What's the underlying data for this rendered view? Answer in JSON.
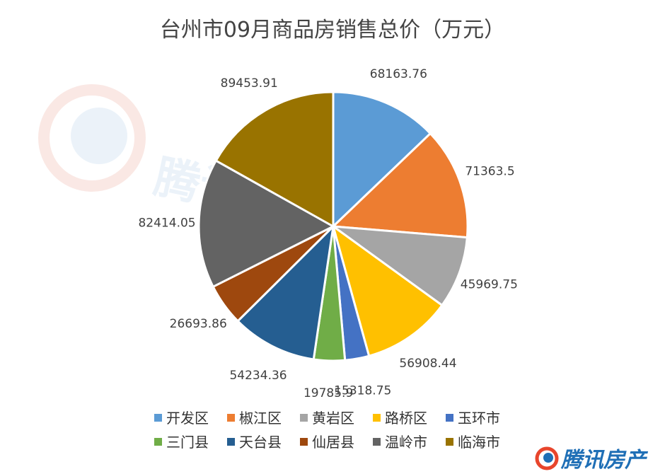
{
  "chart_data": {
    "type": "pie",
    "title": "台州市09月商品房销售总价（万元）",
    "categories": [
      "开发区",
      "椒江区",
      "黄岩区",
      "路桥区",
      "玉环市",
      "三门县",
      "天台县",
      "仙居县",
      "温岭市",
      "临海市"
    ],
    "values": [
      68163.76,
      71363.5,
      45969.75,
      56908.44,
      15318.75,
      19785.9,
      54234.36,
      26693.86,
      82414.05,
      89453.91
    ],
    "value_labels": [
      "68163.76",
      "71363.5",
      "45969.75",
      "56908.44",
      "15318.75",
      "19785.9",
      "54234.36",
      "26693.86",
      "82414.05",
      "89453.91"
    ],
    "colors": [
      "#5b9bd5",
      "#ed7d31",
      "#a5a5a5",
      "#ffc000",
      "#4472c4",
      "#70ad47",
      "#255e91",
      "#9e480e",
      "#636363",
      "#997300"
    ],
    "legend_position": "bottom"
  },
  "watermark": {
    "text": "腾讯房产"
  },
  "brand": {
    "text": "腾讯房产",
    "icon": "tencent-logo-icon"
  }
}
